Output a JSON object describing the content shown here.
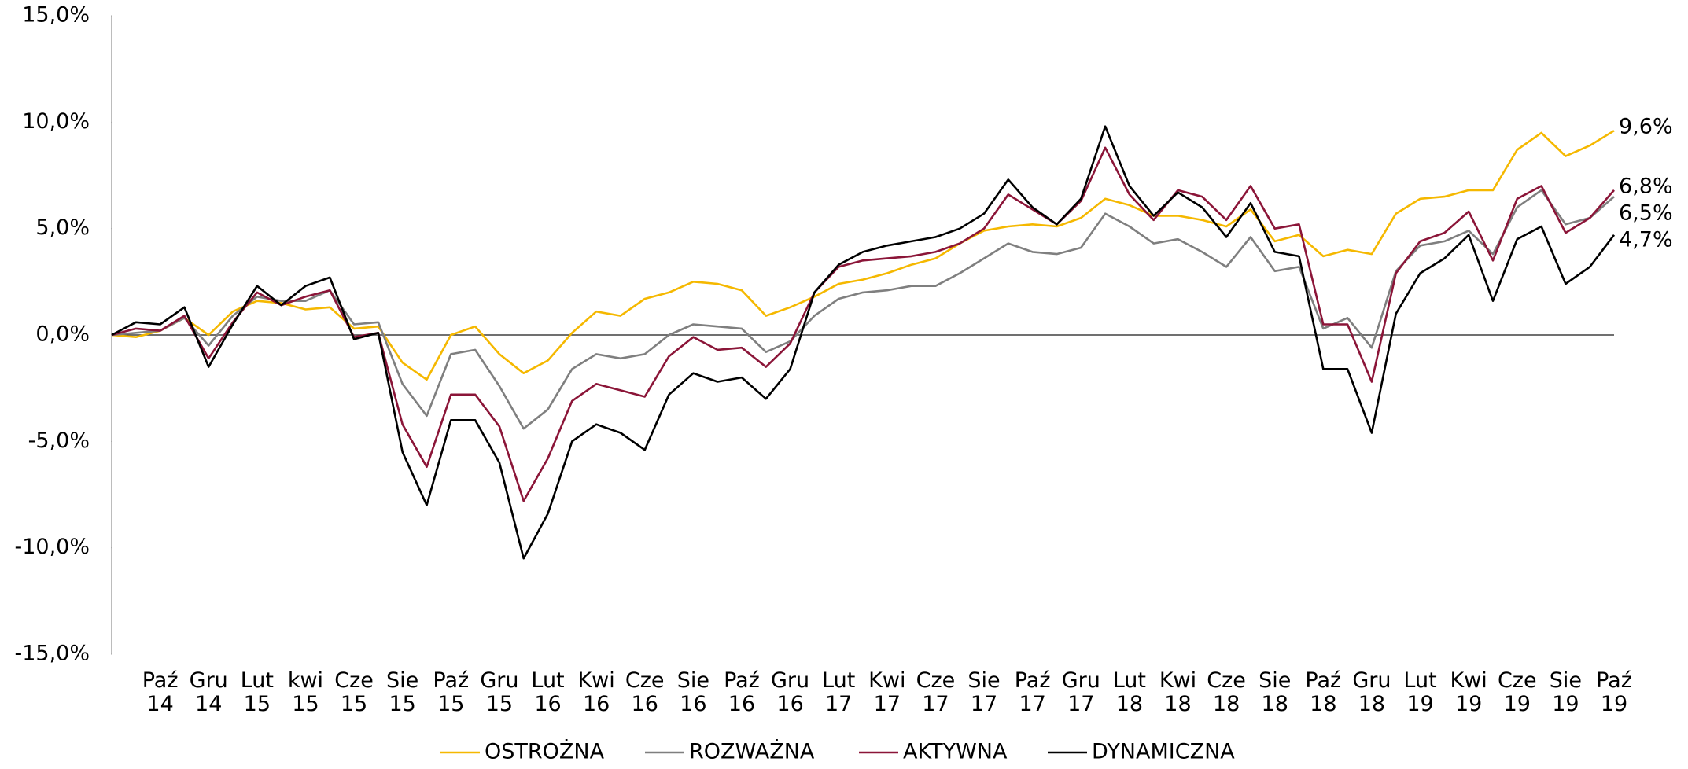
{
  "chart_data": {
    "type": "line",
    "categories": [
      null,
      null,
      "Paź 14",
      null,
      "Gru 14",
      null,
      "Lut 15",
      null,
      "kwi 15",
      null,
      "Cze 15",
      null,
      "Sie 15",
      null,
      "Paź 15",
      null,
      "Gru 15",
      null,
      "Lut 16",
      null,
      "Kwi 16",
      null,
      "Cze 16",
      null,
      "Sie 16",
      null,
      "Paź 16",
      null,
      "Gru 16",
      null,
      "Lut 17",
      null,
      "Kwi 17",
      null,
      "Cze 17",
      null,
      "Sie 17",
      null,
      "Paź 17",
      null,
      "Gru 17",
      null,
      "Lut 18",
      null,
      "Kwi 18",
      null,
      "Cze 18",
      null,
      "Sie 18",
      null,
      "Paź 18",
      null,
      "Gru 18",
      null,
      "Lut 19",
      null,
      "Kwi 19",
      null,
      "Cze 19",
      null,
      "Sie 19",
      null,
      "Paź 19"
    ],
    "series": [
      {
        "name": "OSTROŻNA",
        "color": "#f5b800",
        "values": [
          0,
          -0.1,
          0.2,
          0.8,
          0.0,
          1.1,
          1.6,
          1.5,
          1.2,
          1.3,
          0.3,
          0.4,
          -1.3,
          -2.1,
          0.0,
          0.4,
          -0.9,
          -1.8,
          -1.2,
          0.1,
          1.1,
          0.9,
          1.7,
          2.0,
          2.5,
          2.4,
          2.1,
          0.9,
          1.3,
          1.8,
          2.4,
          2.6,
          2.9,
          3.3,
          3.6,
          4.3,
          4.9,
          5.1,
          5.2,
          5.1,
          5.5,
          6.4,
          6.1,
          5.6,
          5.6,
          5.4,
          5.1,
          5.9,
          4.4,
          4.7,
          3.7,
          4.0,
          3.8,
          5.7,
          6.4,
          6.5,
          6.8,
          6.8,
          8.7,
          9.5,
          8.4,
          8.9,
          9.6
        ],
        "value_labels": [
          null,
          null,
          null,
          null,
          null,
          null,
          null,
          null,
          null,
          null,
          null,
          null,
          null,
          null,
          null,
          null,
          null,
          null,
          null,
          null,
          null,
          null,
          null,
          null,
          null,
          null,
          null,
          null,
          null,
          null,
          null,
          null,
          null,
          null,
          null,
          null,
          null,
          null,
          null,
          null,
          null,
          null,
          null,
          null,
          null,
          null,
          null,
          null,
          null,
          null,
          null,
          null,
          null,
          null,
          null,
          null,
          null,
          null,
          null,
          null,
          null,
          null,
          "9,6%"
        ]
      },
      {
        "name": "ROZWAŻNA",
        "color": "#7f7f7f",
        "values": [
          0,
          0.1,
          0.2,
          0.8,
          -0.5,
          0.9,
          1.8,
          1.6,
          1.6,
          2.1,
          0.5,
          0.6,
          -2.3,
          -3.8,
          -0.9,
          -0.7,
          -2.4,
          -4.4,
          -3.5,
          -1.6,
          -0.9,
          -1.1,
          -0.9,
          0.0,
          0.5,
          0.4,
          0.3,
          -0.8,
          -0.3,
          0.9,
          1.7,
          2.0,
          2.1,
          2.3,
          2.3,
          2.9,
          3.6,
          4.3,
          3.9,
          3.8,
          4.1,
          5.7,
          5.1,
          4.3,
          4.5,
          3.9,
          3.2,
          4.6,
          3.0,
          3.2,
          0.3,
          0.8,
          -0.6,
          3.0,
          4.2,
          4.4,
          4.9,
          3.8,
          6.0,
          6.8,
          5.2,
          5.5,
          6.5
        ],
        "value_labels": [
          null,
          null,
          null,
          null,
          null,
          null,
          null,
          null,
          null,
          null,
          null,
          null,
          null,
          null,
          null,
          null,
          null,
          null,
          null,
          null,
          null,
          null,
          null,
          null,
          null,
          null,
          null,
          null,
          null,
          null,
          null,
          null,
          null,
          null,
          null,
          null,
          null,
          null,
          null,
          null,
          null,
          null,
          null,
          null,
          null,
          null,
          null,
          null,
          null,
          null,
          null,
          null,
          null,
          null,
          null,
          null,
          null,
          null,
          null,
          null,
          null,
          null,
          "6,5%"
        ]
      },
      {
        "name": "AKTYWNA",
        "color": "#8b1538",
        "values": [
          0,
          0.3,
          0.2,
          0.9,
          -1.1,
          0.6,
          2.0,
          1.4,
          1.8,
          2.1,
          -0.1,
          0.1,
          -4.2,
          -6.2,
          -2.8,
          -2.8,
          -4.3,
          -7.8,
          -5.8,
          -3.1,
          -2.3,
          -2.6,
          -2.9,
          -1.0,
          -0.1,
          -0.7,
          -0.6,
          -1.5,
          -0.4,
          2.0,
          3.2,
          3.5,
          3.6,
          3.7,
          3.9,
          4.3,
          5.0,
          6.6,
          5.9,
          5.2,
          6.3,
          8.8,
          6.6,
          5.4,
          6.8,
          6.5,
          5.4,
          7.0,
          5.0,
          5.2,
          0.5,
          0.5,
          -2.2,
          2.9,
          4.4,
          4.8,
          5.8,
          3.5,
          6.4,
          7.0,
          4.8,
          5.5,
          6.8
        ],
        "value_labels": [
          null,
          null,
          null,
          null,
          null,
          null,
          null,
          null,
          null,
          null,
          null,
          null,
          null,
          null,
          null,
          null,
          null,
          null,
          null,
          null,
          null,
          null,
          null,
          null,
          null,
          null,
          null,
          null,
          null,
          null,
          null,
          null,
          null,
          null,
          null,
          null,
          null,
          null,
          null,
          null,
          null,
          null,
          null,
          null,
          null,
          null,
          null,
          null,
          null,
          null,
          null,
          null,
          null,
          null,
          null,
          null,
          null,
          null,
          null,
          null,
          null,
          null,
          "6,8%"
        ]
      },
      {
        "name": "DYNAMICZNA",
        "color": "#000000",
        "values": [
          0,
          0.6,
          0.5,
          1.3,
          -1.5,
          0.5,
          2.3,
          1.4,
          2.3,
          2.7,
          -0.2,
          0.1,
          -5.5,
          -8.0,
          -4.0,
          -4.0,
          -6.0,
          -10.5,
          -8.4,
          -5.0,
          -4.2,
          -4.6,
          -5.4,
          -2.8,
          -1.8,
          -2.2,
          -2.0,
          -3.0,
          -1.6,
          2.0,
          3.3,
          3.9,
          4.2,
          4.4,
          4.6,
          5.0,
          5.7,
          7.3,
          6.0,
          5.2,
          6.4,
          9.8,
          7.0,
          5.6,
          6.7,
          6.0,
          4.6,
          6.2,
          3.9,
          3.7,
          -1.6,
          -1.6,
          -4.6,
          1.0,
          2.9,
          3.6,
          4.7,
          1.6,
          4.5,
          5.1,
          2.4,
          3.2,
          4.7
        ],
        "value_labels": [
          null,
          null,
          null,
          null,
          null,
          null,
          null,
          null,
          null,
          null,
          null,
          null,
          null,
          null,
          null,
          null,
          null,
          null,
          null,
          null,
          null,
          null,
          null,
          null,
          null,
          null,
          null,
          null,
          null,
          null,
          null,
          null,
          null,
          null,
          null,
          null,
          null,
          null,
          null,
          null,
          null,
          null,
          null,
          null,
          null,
          null,
          null,
          null,
          null,
          null,
          null,
          null,
          null,
          null,
          null,
          null,
          null,
          null,
          null,
          null,
          null,
          null,
          "4,7%"
        ]
      }
    ],
    "ylim": [
      -15,
      15
    ],
    "yticks": [
      {
        "value": -15,
        "label": "-15,0%"
      },
      {
        "value": -10,
        "label": "-10,0%"
      },
      {
        "value": -5,
        "label": "-5,0%"
      },
      {
        "value": 0,
        "label": "0,0%"
      },
      {
        "value": 5,
        "label": "5,0%"
      },
      {
        "value": 10,
        "label": "10,0%"
      },
      {
        "value": 15,
        "label": "15,0%"
      }
    ],
    "legend": "bottom"
  }
}
